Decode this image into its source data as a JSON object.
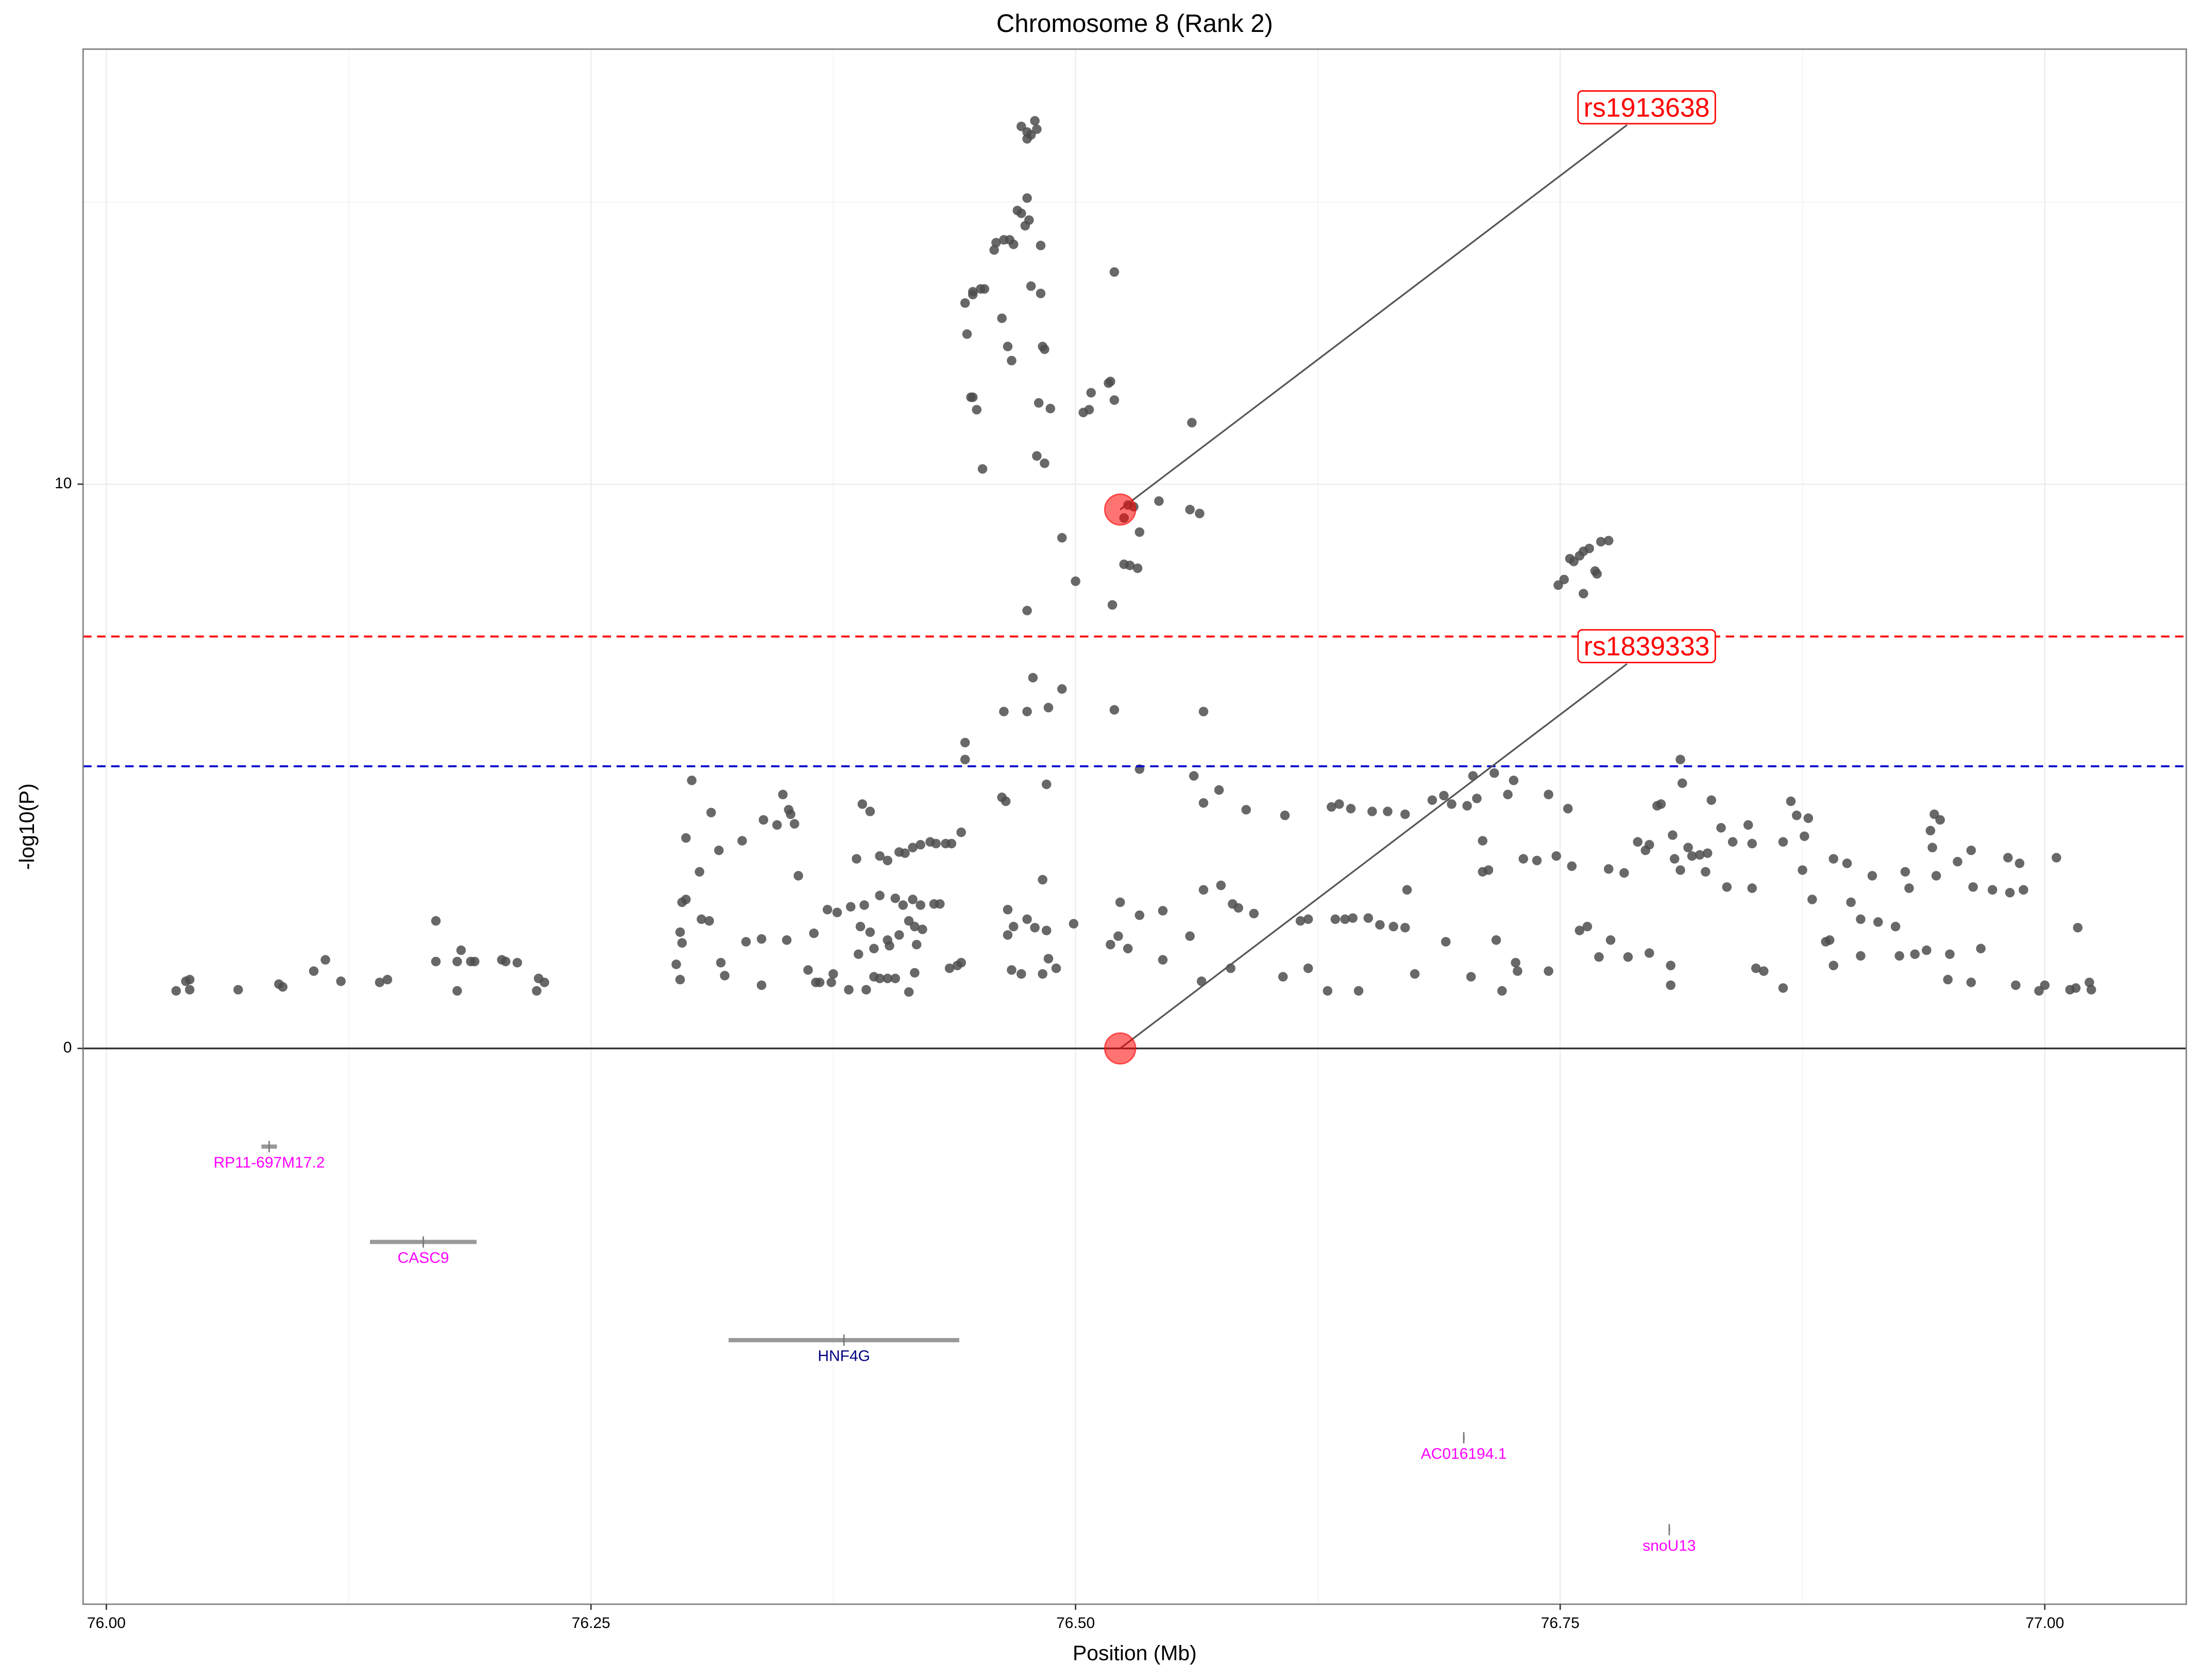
{
  "chart_data": {
    "type": "scatter",
    "title": "Chromosome 8 (Rank 2)",
    "x_label": "Position (Mb)",
    "y_label": "-log10(P)",
    "xlim": [
      75.988,
      77.073
    ],
    "ylim": [
      -9.85,
      17.71
    ],
    "xticks": [
      {
        "value": 76,
        "label": "76.00"
      },
      {
        "value": 76.25,
        "label": "76.25"
      },
      {
        "value": 76.5,
        "label": "76.50"
      },
      {
        "value": 76.75,
        "label": "76.75"
      },
      {
        "value": 77,
        "label": "77.00"
      }
    ],
    "yticks": [
      0,
      10
    ],
    "minor_xgrid": [
      76.125,
      76.375,
      76.625,
      76.875
    ],
    "minor_ygrid": [
      5,
      15
    ],
    "grid": true,
    "color": "#4d4d4d",
    "hlines": [
      {
        "value": 7.3,
        "color": "#ff0000"
      },
      {
        "value": 5,
        "color": "#0000cd"
      }
    ],
    "annotations": [
      {
        "label": "rs1913638",
        "x": 76.523,
        "y": 9.55,
        "color": "#ff0000"
      },
      {
        "label": "rs1839333",
        "x": 76.523,
        "y": 0,
        "color": "#ff0000"
      }
    ],
    "genes": [
      {
        "name": "RP11-697M17.2",
        "start": 76.08,
        "end": 76.088,
        "y": -1.74,
        "color": "#ff00ff"
      },
      {
        "name": "CASC9",
        "start": 76.136,
        "end": 76.191,
        "y": -3.43,
        "color": "#ff00ff"
      },
      {
        "name": "HNF4G",
        "start": 76.321,
        "end": 76.44,
        "y": -5.17,
        "color": "#000080"
      },
      {
        "name": "AC016194.1",
        "start": 76.7,
        "end": 76.7005,
        "y": -6.9,
        "color": "#ff00ff"
      },
      {
        "name": "snoU13",
        "start": 76.806,
        "end": 76.8065,
        "y": -8.53,
        "color": "#ff00ff"
      }
    ],
    "x": [
      76.036,
      76.041,
      76.043,
      76.043,
      76.068,
      76.089,
      76.091,
      76.107,
      76.113,
      76.121,
      76.141,
      76.145,
      76.17,
      76.17,
      76.181,
      76.183,
      76.181,
      76.188,
      76.19,
      76.204,
      76.206,
      76.212,
      76.222,
      76.223,
      76.226,
      76.302,
      76.312,
      76.299,
      76.306,
      76.297,
      76.299,
      76.307,
      76.311,
      76.296,
      76.297,
      76.294,
      76.296,
      76.317,
      76.319,
      76.316,
      76.328,
      76.339,
      76.346,
      76.349,
      76.353,
      76.355,
      76.352,
      76.357,
      76.338,
      76.33,
      76.338,
      76.351,
      76.362,
      76.366,
      76.368,
      76.375,
      76.374,
      76.383,
      76.392,
      76.396,
      76.399,
      76.403,
      76.407,
      76.414,
      76.417,
      76.425,
      76.428,
      76.433,
      76.436,
      76.441,
      76.435,
      76.439,
      76.441,
      76.39,
      76.394,
      76.387,
      76.399,
      76.403,
      76.409,
      76.412,
      76.416,
      76.42,
      76.365,
      76.372,
      76.377,
      76.384,
      76.391,
      76.399,
      76.407,
      76.411,
      76.416,
      76.42,
      76.427,
      76.43,
      76.389,
      76.394,
      76.403,
      76.404,
      76.409,
      76.414,
      76.417,
      76.421,
      76.388,
      76.396,
      76.418,
      76.443,
      76.443,
      76.462,
      76.464,
      76.463,
      76.475,
      76.478,
      76.486,
      76.493,
      76.485,
      76.475,
      76.493,
      76.5,
      76.519,
      76.52,
      76.533,
      76.533,
      76.528,
      76.525,
      76.532,
      76.527,
      76.53,
      76.525,
      76.543,
      76.559,
      76.564,
      76.566,
      76.56,
      76.52,
      76.518,
      76.52,
      76.504,
      76.507,
      76.508,
      76.517,
      76.481,
      76.487,
      76.484,
      76.48,
      76.452,
      76.446,
      76.447,
      76.449,
      76.444,
      76.443,
      76.447,
      76.447,
      76.451,
      76.453,
      76.462,
      76.465,
      76.467,
      76.477,
      76.482,
      76.483,
      76.484,
      76.458,
      76.459,
      76.463,
      76.466,
      76.468,
      76.474,
      76.476,
      76.482,
      76.47,
      76.472,
      76.475,
      76.472,
      76.475,
      76.477,
      76.479,
      76.48,
      76.475,
      76.465,
      76.468,
      76.465,
      76.467,
      76.475,
      76.479,
      76.483,
      76.485,
      76.486,
      76.483,
      76.472,
      76.49,
      76.499,
      76.518,
      76.522,
      76.523,
      76.533,
      76.527,
      76.545,
      76.545,
      76.559,
      76.561,
      76.566,
      76.574,
      76.565,
      76.566,
      76.575,
      76.581,
      76.584,
      76.592,
      76.58,
      76.588,
      76.608,
      76.616,
      76.62,
      76.607,
      76.62,
      76.63,
      76.632,
      76.636,
      76.642,
      76.653,
      76.661,
      76.67,
      76.634,
      76.639,
      76.643,
      76.651,
      76.657,
      76.664,
      76.67,
      76.646,
      76.671,
      76.675,
      76.691,
      76.684,
      76.69,
      76.694,
      76.702,
      76.705,
      76.707,
      76.71,
      76.71,
      76.713,
      76.716,
      76.704,
      76.717,
      76.72,
      76.723,
      76.726,
      76.727,
      76.728,
      76.731,
      76.738,
      76.744,
      76.744,
      76.748,
      76.754,
      76.749,
      76.752,
      76.755,
      76.757,
      76.76,
      76.762,
      76.765,
      76.762,
      76.768,
      76.769,
      76.771,
      76.775,
      76.756,
      76.76,
      76.764,
      76.77,
      76.776,
      76.785,
      76.796,
      76.807,
      76.807,
      76.775,
      76.783,
      76.79,
      76.794,
      76.796,
      76.8,
      76.802,
      76.808,
      76.809,
      76.812,
      76.813,
      76.812,
      76.816,
      76.818,
      76.822,
      76.826,
      76.828,
      76.825,
      76.833,
      76.836,
      76.839,
      76.847,
      76.849,
      76.849,
      76.851,
      76.855,
      76.865,
      76.865,
      76.869,
      76.872,
      76.876,
      76.878,
      76.875,
      76.88,
      76.887,
      76.889,
      76.891,
      76.898,
      76.9,
      76.905,
      76.905,
      76.891,
      76.911,
      76.914,
      76.923,
      76.928,
      76.93,
      76.925,
      76.933,
      76.939,
      76.942,
      76.943,
      76.941,
      76.946,
      76.944,
      76.951,
      76.95,
      76.955,
      76.962,
      76.963,
      76.967,
      76.962,
      76.973,
      76.981,
      76.982,
      76.987,
      76.989,
      76.985,
      76.997,
      77.0,
      77.006,
      77.013,
      77.017,
      77.016,
      77.024,
      77.023
    ],
    "values": [
      1.02,
      1.19,
      1.04,
      1.22,
      1.04,
      1.14,
      1.09,
      1.37,
      1.57,
      1.19,
      1.17,
      1.22,
      2.26,
      1.54,
      1.54,
      1.74,
      1.02,
      1.54,
      1.54,
      1.57,
      1.54,
      1.52,
      1.02,
      1.24,
      1.17,
      4.75,
      4.18,
      3.73,
      3.13,
      2.59,
      2.64,
      2.29,
      2.26,
      2.06,
      1.87,
      1.49,
      1.22,
      1.52,
      1.29,
      3.51,
      3.68,
      4.05,
      3.96,
      4.5,
      4.15,
      3.98,
      4.23,
      3.06,
      1.94,
      1.89,
      1.12,
      1.92,
      1.39,
      1.17,
      1.17,
      1.32,
      1.17,
      1.04,
      1.04,
      1.27,
      1.24,
      1.24,
      1.24,
      1.0,
      1.34,
      3.66,
      3.63,
      3.63,
      3.63,
      3.83,
      1.42,
      1.47,
      1.52,
      4.33,
      4.2,
      3.36,
      3.41,
      3.33,
      3.48,
      3.46,
      3.56,
      3.61,
      2.04,
      2.46,
      2.41,
      2.51,
      2.54,
      2.71,
      2.66,
      2.54,
      2.64,
      2.54,
      2.56,
      2.56,
      2.16,
      2.06,
      1.92,
      1.82,
      2.01,
      2.26,
      2.16,
      2.11,
      1.67,
      1.77,
      1.84,
      5.42,
      5.12,
      4.45,
      4.38,
      5.97,
      5.97,
      6.57,
      6.04,
      6.37,
      4.68,
      7.76,
      9.05,
      8.28,
      7.86,
      6.0,
      4.95,
      9.15,
      8.56,
      8.58,
      8.51,
      9.63,
      9.6,
      9.4,
      9.7,
      9.55,
      9.48,
      5.97,
      11.09,
      13.76,
      11.82,
      11.49,
      11.27,
      11.32,
      11.62,
      11.79,
      11.44,
      11.34,
      10.37,
      10.5,
      10.27,
      11.54,
      11.54,
      11.32,
      12.66,
      13.21,
      13.36,
      13.41,
      13.46,
      13.46,
      12.94,
      12.44,
      12.19,
      13.51,
      13.38,
      12.44,
      12.39,
      14.15,
      14.28,
      14.33,
      14.33,
      14.25,
      14.58,
      14.68,
      14.23,
      14.85,
      14.8,
      15.07,
      16.34,
      16.24,
      16.19,
      16.44,
      16.29,
      16.12,
      2.46,
      2.16,
      2.01,
      1.39,
      2.29,
      2.14,
      2.99,
      2.09,
      1.59,
      1.32,
      1.32,
      1.42,
      2.21,
      1.84,
      1.99,
      2.59,
      2.36,
      1.77,
      1.57,
      2.44,
      1.99,
      4.83,
      4.35,
      4.58,
      1.19,
      2.81,
      2.89,
      2.56,
      2.49,
      2.39,
      1.42,
      4.23,
      4.13,
      2.26,
      2.29,
      1.27,
      1.42,
      1.02,
      4.28,
      4.33,
      4.25,
      4.2,
      4.2,
      4.15,
      2.29,
      2.29,
      2.31,
      2.31,
      2.19,
      2.16,
      2.14,
      1.02,
      2.81,
      1.32,
      1.89,
      4.4,
      4.48,
      4.33,
      4.3,
      4.83,
      4.43,
      3.68,
      3.13,
      3.16,
      4.88,
      1.27,
      1.92,
      1.02,
      4.5,
      4.75,
      1.52,
      1.37,
      3.36,
      3.33,
      1.37,
      4.5,
      3.41,
      4.25,
      8.21,
      8.31,
      8.68,
      8.63,
      8.73,
      8.81,
      8.86,
      8.06,
      8.46,
      8.41,
      8.98,
      9.0,
      3.23,
      2.09,
      2.16,
      1.62,
      1.92,
      1.62,
      1.69,
      1.47,
      1.12,
      3.18,
      3.11,
      3.66,
      3.51,
      3.61,
      4.3,
      4.33,
      3.78,
      3.36,
      3.16,
      4.7,
      5.12,
      3.56,
      3.41,
      3.43,
      3.46,
      4.4,
      3.13,
      3.91,
      2.86,
      3.66,
      3.96,
      3.63,
      2.84,
      1.42,
      1.37,
      1.07,
      3.66,
      4.38,
      4.13,
      3.76,
      4.08,
      3.16,
      2.64,
      1.89,
      1.92,
      3.36,
      3.28,
      2.59,
      2.29,
      1.64,
      1.47,
      3.06,
      2.24,
      2.16,
      3.13,
      2.84,
      1.64,
      1.67,
      1.74,
      3.56,
      4.15,
      3.86,
      4.05,
      3.06,
      1.67,
      1.22,
      3.31,
      3.51,
      2.86,
      1.77,
      1.17,
      2.81,
      3.38,
      2.76,
      3.28,
      2.81,
      1.12,
      1.02,
      1.12,
      3.38,
      1.04,
      2.14,
      1.07,
      1.04,
      1.17
    ]
  }
}
